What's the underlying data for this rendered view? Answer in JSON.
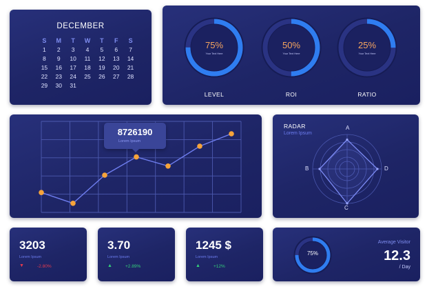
{
  "calendar": {
    "month": "DECEMBER",
    "weekdays": [
      "S",
      "M",
      "T",
      "W",
      "T",
      "F",
      "S"
    ],
    "days": [
      "1",
      "2",
      "3",
      "4",
      "5",
      "6",
      "7",
      "8",
      "9",
      "10",
      "11",
      "12",
      "13",
      "14",
      "15",
      "16",
      "17",
      "18",
      "19",
      "20",
      "21",
      "22",
      "23",
      "24",
      "25",
      "26",
      "27",
      "28",
      "29",
      "30",
      "31"
    ]
  },
  "gauges": [
    {
      "value": "75%",
      "fraction": 0.75,
      "subtext": "Your Text Here",
      "label": "LEVEL"
    },
    {
      "value": "50%",
      "fraction": 0.5,
      "subtext": "Your Text Here",
      "label": "ROI"
    },
    {
      "value": "25%",
      "fraction": 0.25,
      "subtext": "Your Text Here",
      "label": "RATIO"
    }
  ],
  "line_chart": {
    "tooltip_value": "8726190",
    "tooltip_sub": "Lorem Ipsum",
    "colors": {
      "line": "#6f7ef0",
      "point": "#f6a33a",
      "grid": "#4d5ab0"
    }
  },
  "chart_data": {
    "type": "line",
    "x": [
      0,
      1,
      2,
      3,
      4,
      5,
      6
    ],
    "values": [
      0.24,
      0.11,
      0.45,
      0.67,
      0.56,
      0.8,
      0.95
    ],
    "ylim": [
      0,
      1
    ],
    "grid": true,
    "title": "",
    "xlabel": "",
    "ylabel": ""
  },
  "radar": {
    "title": "RADAR",
    "subtitle": "Lorem Ipsum",
    "axes": [
      "A",
      "B",
      "C",
      "D"
    ],
    "values": [
      0.85,
      0.8,
      1.0,
      0.88
    ]
  },
  "stats": [
    {
      "value": "3203",
      "sub": "Lorem Ipsum",
      "direction": "down",
      "arrow": "▼",
      "change": "-2.80%"
    },
    {
      "value": "3.70",
      "sub": "Lorem Ipsum",
      "direction": "up",
      "arrow": "▲",
      "change": "+2.89%"
    },
    {
      "value": "1245 $",
      "sub": "Lorem Ipsum",
      "direction": "up",
      "arrow": "▲",
      "change": "+12%"
    }
  ],
  "visitor": {
    "percent": "75%",
    "fraction": 0.75,
    "label": "Average Visitor",
    "value": "12.3",
    "per": "/ Day"
  }
}
